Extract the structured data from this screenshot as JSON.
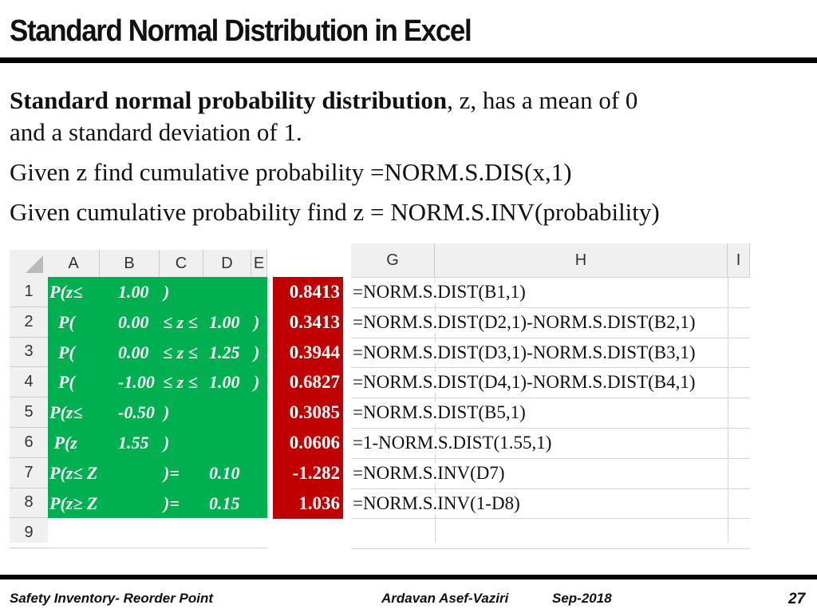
{
  "header": {
    "title": "Standard Normal Distribution in Excel"
  },
  "body": {
    "line1_bold": "Standard normal probability distribution",
    "line1_rest": ", z,  has a mean of 0",
    "line2": "and a standard deviation of 1.",
    "line3": "Given z find cumulative probability =NORM.S.DIS(x,1)",
    "line4": "Given cumulative probability find z = NORM.S.INV(probability)"
  },
  "sheet_left": {
    "columns": [
      "A",
      "B",
      "C",
      "D",
      "E"
    ],
    "row_numbers": [
      "1",
      "2",
      "3",
      "4",
      "5",
      "6",
      "7",
      "8",
      "9"
    ],
    "rows": [
      [
        "P(z≤",
        "1.00",
        ")",
        "",
        ""
      ],
      [
        "  P(",
        "0.00",
        "≤ z ≤",
        "1.00",
        ")"
      ],
      [
        "  P(",
        "0.00",
        "≤ z ≤",
        "1.25",
        ")"
      ],
      [
        "  P(",
        "-1.00",
        "≤ z ≤",
        "1.00",
        ")"
      ],
      [
        "P(z≤",
        "-0.50",
        ")",
        "",
        ""
      ],
      [
        " P(z",
        "1.55",
        ")",
        "",
        ""
      ],
      [
        "P(z≤ Z",
        "",
        ")=",
        "0.10",
        ""
      ],
      [
        "P(z≥ Z",
        "",
        ")=",
        "0.15",
        ""
      ]
    ]
  },
  "results": [
    "0.8413",
    "0.3413",
    "0.3944",
    "0.6827",
    "0.3085",
    "0.0606",
    "-1.282",
    "1.036"
  ],
  "sheet_right": {
    "columns": [
      "G",
      "H",
      "I"
    ],
    "formulas": [
      "=NORM.S.DIST(B1,1)",
      "=NORM.S.DIST(D2,1)-NORM.S.DIST(B2,1)",
      "=NORM.S.DIST(D3,1)-NORM.S.DIST(B3,1)",
      "=NORM.S.DIST(D4,1)-NORM.S.DIST(B4,1)",
      "=NORM.S.DIST(B5,1)",
      "=1-NORM.S.DIST(1.55,1)",
      "=NORM.S.INV(D7)",
      "=NORM.S.INV(1-D8)"
    ]
  },
  "footer": {
    "left": "Safety Inventory- Reorder Point",
    "author": "Ardavan Asef-Vaziri",
    "date": "Sep-2018",
    "page": "27"
  }
}
